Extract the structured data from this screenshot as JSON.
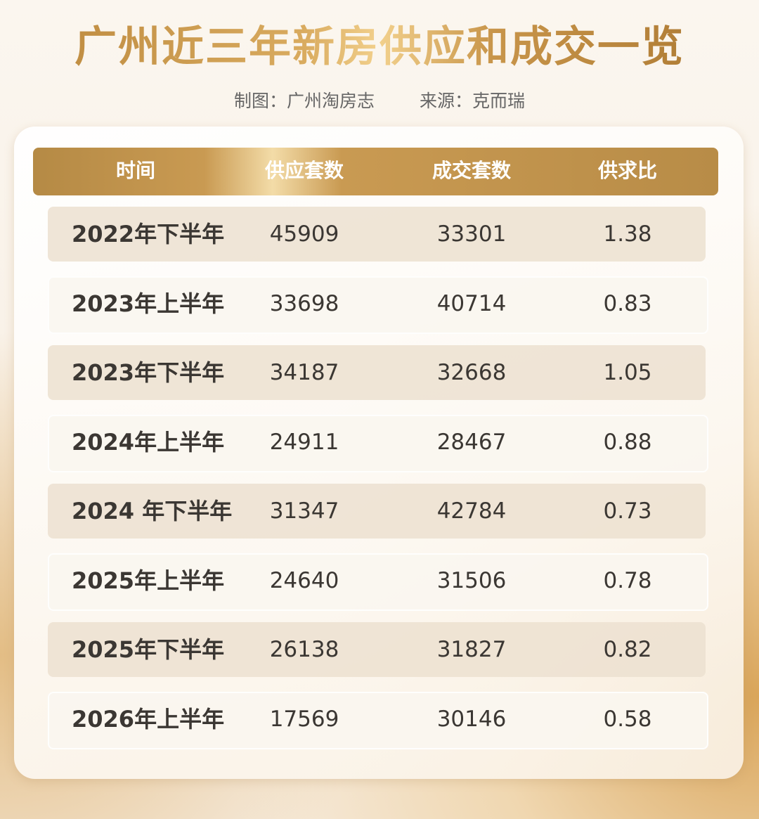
{
  "header": {
    "title": "广州近三年新房供应和成交一览",
    "credit": "制图：广州淘房志",
    "source": "来源：克而瑞"
  },
  "table": {
    "columns": [
      "时间",
      "供应套数",
      "成交套数",
      "供求比"
    ],
    "rows": [
      [
        "2022年下半年",
        45909,
        33301,
        1.38
      ],
      [
        "2023年上半年",
        33698,
        40714,
        0.83
      ],
      [
        "2023年下半年",
        34187,
        32668,
        1.05
      ],
      [
        "2024年上半年",
        24911,
        28467,
        0.88
      ],
      [
        "2024 年下半年",
        31347,
        42784,
        0.73
      ],
      [
        "2025年上半年",
        24640,
        31506,
        0.78
      ],
      [
        "2025年下半年",
        26138,
        31827,
        0.82
      ],
      [
        "2026年上半年",
        17569,
        30146,
        0.58
      ]
    ]
  }
}
